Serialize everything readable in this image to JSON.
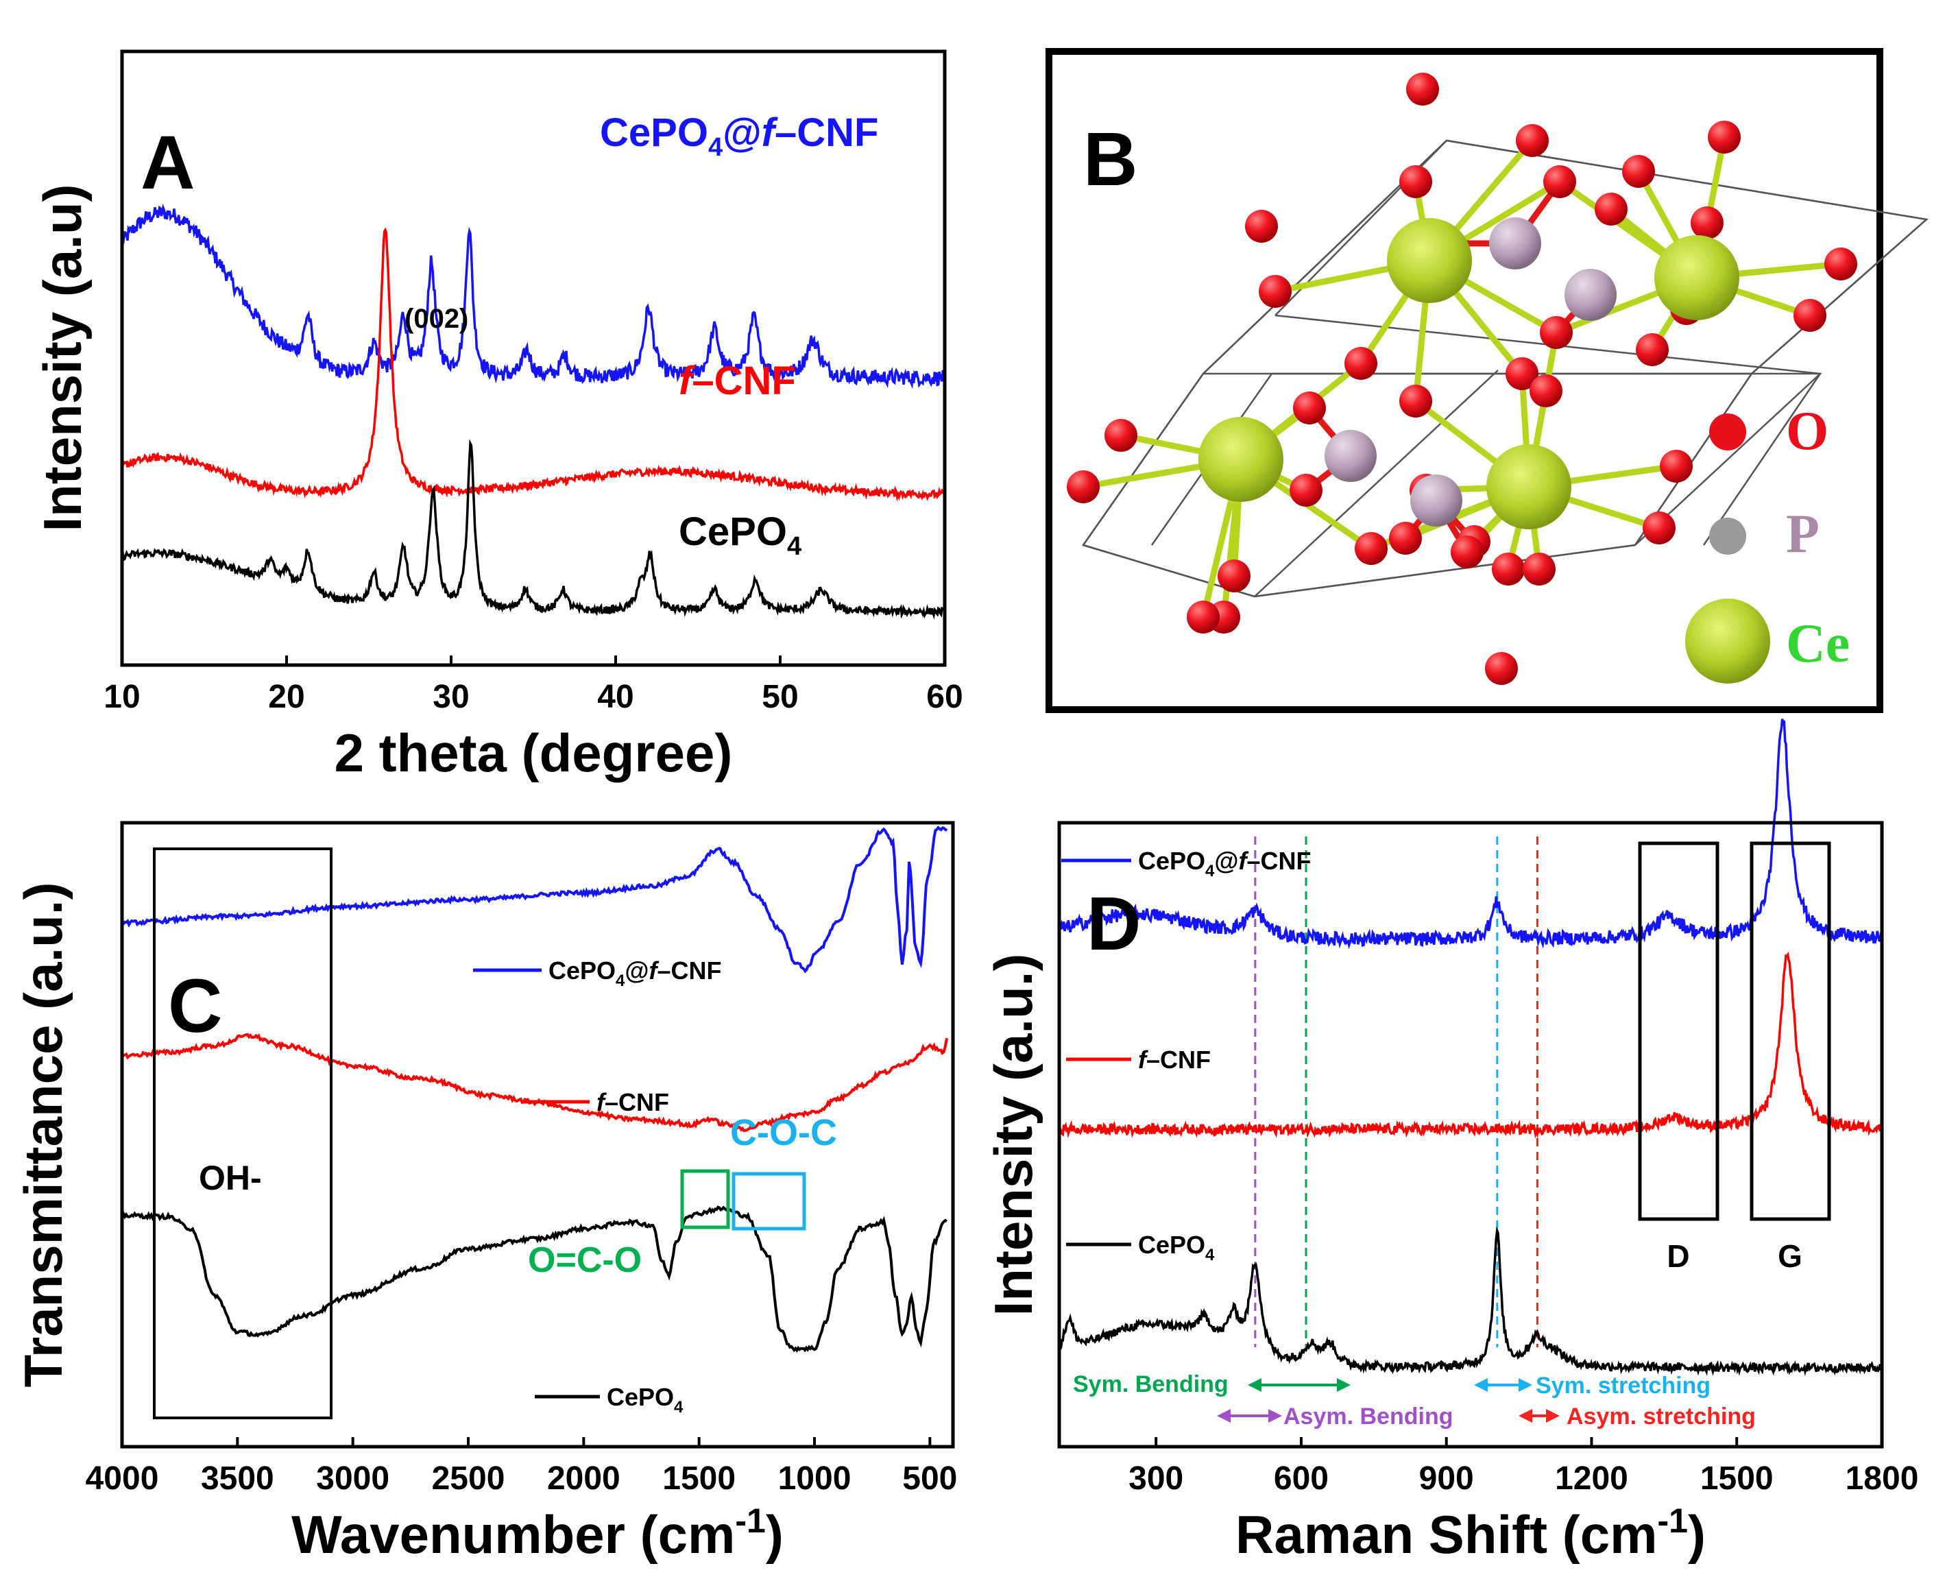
{
  "chart_data": [
    {
      "panel": "A",
      "type": "line",
      "xlabel": "2 theta (degree)",
      "ylabel": "Intensity (a.u)",
      "xlim": [
        10,
        60
      ],
      "xticks": [
        "10",
        "20",
        "30",
        "40",
        "50",
        "60"
      ],
      "annotation": "(002)",
      "series": [
        {
          "name": "CePO4@f–CNF",
          "label_main": "CePO",
          "label_sub": "4",
          "label_rest": "@",
          "label_ital": "f",
          "label_tail": "–CNF",
          "color": "#1414ff",
          "baseline": 2.25,
          "noise": 0.07,
          "broad": [
            [
              12.5,
              1.55,
              4.0
            ]
          ],
          "peaks": [
            [
              21.3,
              0.45,
              0.3
            ],
            [
              25.3,
              0.3,
              0.35
            ],
            [
              27.1,
              0.55,
              0.3
            ],
            [
              28.8,
              1.05,
              0.3
            ],
            [
              31.1,
              1.4,
              0.25
            ],
            [
              34.6,
              0.25,
              0.3
            ],
            [
              36.9,
              0.2,
              0.3
            ],
            [
              42.0,
              0.65,
              0.35
            ],
            [
              46.0,
              0.45,
              0.35
            ],
            [
              48.4,
              0.55,
              0.35
            ],
            [
              52.0,
              0.35,
              0.5
            ]
          ]
        },
        {
          "name": "f–CNF",
          "label_ital": "f",
          "label_tail": "–CNF",
          "color": "#ff0000",
          "baseline": 1.15,
          "noise": 0.035,
          "broad": [
            [
              12.5,
              0.35,
              3.5
            ],
            [
              43.0,
              0.22,
              6.0
            ]
          ],
          "peaks": [
            [
              26.0,
              2.5,
              0.4
            ]
          ]
        },
        {
          "name": "CePO4",
          "label_main": "CePO",
          "label_sub": "4",
          "color": "#000000",
          "baseline": 0.05,
          "noise": 0.035,
          "broad": [
            [
              12.0,
              0.55,
              6.0
            ]
          ],
          "peaks": [
            [
              19.0,
              0.2,
              0.3
            ],
            [
              20.0,
              0.15,
              0.3
            ],
            [
              21.3,
              0.4,
              0.3
            ],
            [
              25.3,
              0.3,
              0.3
            ],
            [
              27.1,
              0.55,
              0.3
            ],
            [
              28.9,
              1.1,
              0.3
            ],
            [
              31.2,
              1.55,
              0.25
            ],
            [
              34.5,
              0.2,
              0.3
            ],
            [
              36.8,
              0.2,
              0.3
            ],
            [
              41.5,
              0.2,
              0.3
            ],
            [
              42.1,
              0.5,
              0.3
            ],
            [
              46.0,
              0.2,
              0.3
            ],
            [
              48.5,
              0.3,
              0.35
            ],
            [
              52.5,
              0.2,
              0.5
            ]
          ]
        }
      ]
    },
    {
      "panel": "B",
      "type": "structure",
      "legend": [
        {
          "symbol": "O",
          "color": "#e8101a"
        },
        {
          "symbol": "P",
          "color": "#a98aa6"
        },
        {
          "symbol": "Ce",
          "color": "#33d633"
        }
      ]
    },
    {
      "panel": "C",
      "type": "line",
      "xlabel": "Wavenumber (cm",
      "xlabel_sup": "-1",
      "xlabel_close": ")",
      "ylabel": "Transmittance (a.u.)",
      "xlim": [
        4000,
        400
      ],
      "xticks": [
        "4000",
        "3500",
        "3000",
        "2500",
        "2000",
        "1500",
        "1000",
        "500"
      ],
      "region_labels": {
        "oh": "OH-",
        "oco": "O=C-O",
        "coc": "C-O-C"
      },
      "series": [
        {
          "name": "CePO4@f–CNF",
          "label_main": "CePO",
          "label_sub": "4",
          "label_rest": "@",
          "label_ital": "f",
          "label_tail": "–CNF",
          "color": "#1414ff",
          "points": [
            [
              4000,
              0.86
            ],
            [
              3500,
              0.87
            ],
            [
              3000,
              0.885
            ],
            [
              2500,
              0.895
            ],
            [
              2000,
              0.905
            ],
            [
              1700,
              0.915
            ],
            [
              1550,
              0.93
            ],
            [
              1420,
              0.97
            ],
            [
              1350,
              0.95
            ],
            [
              1250,
              0.9
            ],
            [
              1150,
              0.85
            ],
            [
              1080,
              0.8
            ],
            [
              1040,
              0.79
            ],
            [
              980,
              0.82
            ],
            [
              900,
              0.86
            ],
            [
              800,
              0.95
            ],
            [
              700,
              1.0
            ],
            [
              660,
              0.98
            ],
            [
              640,
              0.88
            ],
            [
              620,
              0.8
            ],
            [
              600,
              0.85
            ],
            [
              590,
              0.95
            ],
            [
              560,
              0.82
            ],
            [
              540,
              0.8
            ],
            [
              510,
              0.93
            ],
            [
              470,
              1.0
            ],
            [
              420,
              1.0
            ]
          ]
        },
        {
          "name": "f–CNF",
          "label_ital": "f",
          "label_tail": "–CNF",
          "color": "#ff0000",
          "points": [
            [
              4000,
              0.66
            ],
            [
              3800,
              0.665
            ],
            [
              3600,
              0.675
            ],
            [
              3450,
              0.69
            ],
            [
              3300,
              0.675
            ],
            [
              3000,
              0.645
            ],
            [
              2700,
              0.625
            ],
            [
              2400,
              0.6
            ],
            [
              2200,
              0.59
            ],
            [
              2000,
              0.575
            ],
            [
              1800,
              0.565
            ],
            [
              1600,
              0.56
            ],
            [
              1550,
              0.555
            ],
            [
              1450,
              0.565
            ],
            [
              1400,
              0.558
            ],
            [
              1300,
              0.55
            ],
            [
              1200,
              0.56
            ],
            [
              1100,
              0.57
            ],
            [
              1000,
              0.575
            ],
            [
              900,
              0.595
            ],
            [
              800,
              0.615
            ],
            [
              700,
              0.635
            ],
            [
              600,
              0.65
            ],
            [
              500,
              0.675
            ],
            [
              440,
              0.665
            ],
            [
              420,
              0.69
            ]
          ]
        },
        {
          "name": "CePO4",
          "label_main": "CePO",
          "label_sub": "4",
          "color": "#000000",
          "points": [
            [
              4000,
              0.42
            ],
            [
              3800,
              0.418
            ],
            [
              3700,
              0.4
            ],
            [
              3600,
              0.3
            ],
            [
              3500,
              0.245
            ],
            [
              3400,
              0.24
            ],
            [
              3200,
              0.27
            ],
            [
              3000,
              0.3
            ],
            [
              2700,
              0.34
            ],
            [
              2500,
              0.37
            ],
            [
              2200,
              0.385
            ],
            [
              2000,
              0.4
            ],
            [
              1800,
              0.41
            ],
            [
              1700,
              0.405
            ],
            [
              1660,
              0.35
            ],
            [
              1630,
              0.33
            ],
            [
              1600,
              0.38
            ],
            [
              1550,
              0.42
            ],
            [
              1400,
              0.43
            ],
            [
              1300,
              0.42
            ],
            [
              1200,
              0.36
            ],
            [
              1150,
              0.25
            ],
            [
              1100,
              0.22
            ],
            [
              1000,
              0.22
            ],
            [
              950,
              0.26
            ],
            [
              900,
              0.34
            ],
            [
              800,
              0.4
            ],
            [
              700,
              0.41
            ],
            [
              680,
              0.38
            ],
            [
              650,
              0.3
            ],
            [
              620,
              0.24
            ],
            [
              600,
              0.26
            ],
            [
              580,
              0.3
            ],
            [
              560,
              0.25
            ],
            [
              540,
              0.23
            ],
            [
              520,
              0.27
            ],
            [
              480,
              0.38
            ],
            [
              440,
              0.41
            ],
            [
              420,
              0.41
            ]
          ]
        }
      ]
    },
    {
      "panel": "D",
      "type": "line",
      "xlabel": "Raman Shift (cm",
      "xlabel_sup": "-1",
      "xlabel_close": ")",
      "ylabel": "Intensity (a.u.)",
      "xlim": [
        100,
        1800
      ],
      "xticks": [
        "300",
        "600",
        "900",
        "1200",
        "1500",
        "1800"
      ],
      "band_labels": {
        "d": "D",
        "g": "G"
      },
      "annotations": [
        {
          "text": "Sym. Bending",
          "color": "#00a64f"
        },
        {
          "text": "Asym. Bending",
          "color": "#a050c8"
        },
        {
          "text": "Sym. stretching",
          "color": "#1ab2ee"
        },
        {
          "text": "Asym. stretching",
          "color": "#ff2020"
        }
      ],
      "vlines": [
        {
          "x": 505,
          "color": "#a050c8"
        },
        {
          "x": 610,
          "color": "#00a64f"
        },
        {
          "x": 1005,
          "color": "#1ab2ee"
        },
        {
          "x": 1088,
          "color": "#ff2020"
        }
      ],
      "series": [
        {
          "name": "CePO4@f–CNF",
          "label_main": "CePO",
          "label_sub": "4",
          "label_rest": "@",
          "label_ital": "f",
          "label_tail": "–CNF",
          "color": "#1414ff",
          "baseline": 2.55,
          "noise": 0.04,
          "broad": [
            [
              260,
              0.15,
              120
            ]
          ],
          "peaks": [
            [
              505,
              0.15,
              25
            ],
            [
              1005,
              0.22,
              14
            ],
            [
              1360,
              0.13,
              35
            ],
            [
              1595,
              1.3,
              18
            ]
          ]
        },
        {
          "name": "f–CNF",
          "label_ital": "f",
          "label_tail": "–CNF",
          "color": "#ff0000",
          "baseline": 1.42,
          "noise": 0.03,
          "broad": [],
          "peaks": [
            [
              1370,
              0.07,
              30
            ],
            [
              1605,
              1.05,
              18
            ]
          ]
        },
        {
          "name": "CePO4",
          "label_main": "CePO",
          "label_sub": "4",
          "color": "#000000",
          "baseline": 0.0,
          "noise": 0.025,
          "broad": [
            [
              290,
              0.25,
              120
            ]
          ],
          "peaks": [
            [
              120,
              0.2,
              12
            ],
            [
              400,
              0.12,
              20
            ],
            [
              460,
              0.2,
              15
            ],
            [
              505,
              0.55,
              14
            ],
            [
              620,
              0.12,
              20
            ],
            [
              660,
              0.12,
              15
            ],
            [
              1005,
              0.8,
              9
            ],
            [
              1085,
              0.15,
              20
            ],
            [
              1120,
              0.08,
              30
            ]
          ]
        }
      ]
    }
  ]
}
